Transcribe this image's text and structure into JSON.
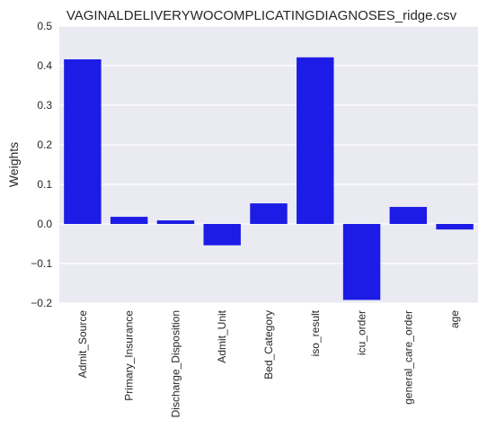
{
  "chart_data": {
    "type": "bar",
    "title": "VAGINALDELIVERYWOCOMPLICATINGDIAGNOSES_ridge.csv",
    "xlabel": "",
    "ylabel": "Weights",
    "categories": [
      "Admit_Source",
      "Primary_Insurance",
      "Discharge_Disposition",
      "Admit_Unit",
      "Bed_Category",
      "iso_result",
      "icu_order",
      "general_care_order",
      "age"
    ],
    "values": [
      0.416,
      0.018,
      0.009,
      -0.054,
      0.052,
      0.421,
      -0.192,
      0.043,
      -0.014
    ],
    "ylim": [
      -0.2,
      0.5
    ],
    "yticks": [
      -0.2,
      -0.1,
      0.0,
      0.1,
      0.2,
      0.3,
      0.4,
      0.5
    ],
    "ytick_labels": [
      "−0.2",
      "−0.1",
      "0.0",
      "0.1",
      "0.2",
      "0.3",
      "0.4",
      "0.5"
    ],
    "grid": true,
    "bar_color": "#1c1ce6",
    "background_color": "#eaeaf2",
    "grid_color": "#ffffff"
  }
}
